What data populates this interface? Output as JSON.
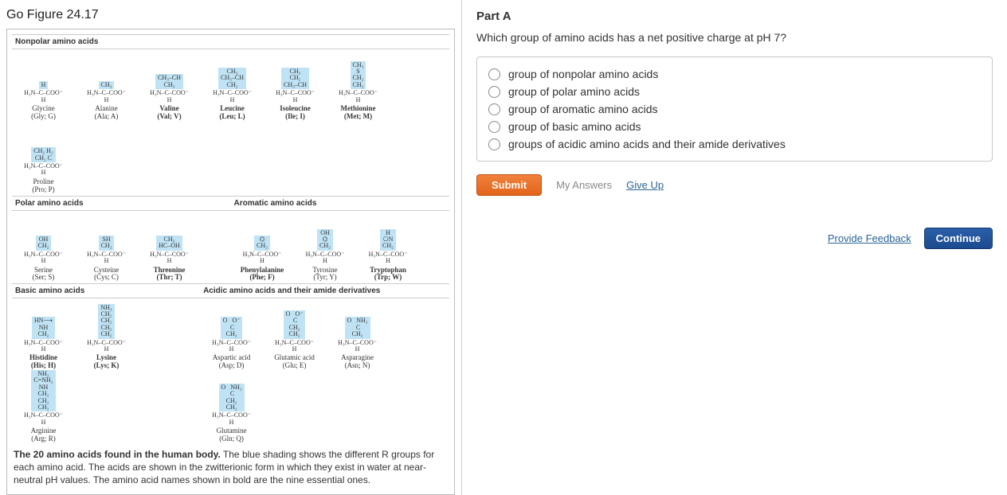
{
  "figure": {
    "title": "Go Figure 24.17",
    "groups": {
      "nonpolar_label": "Nonpolar amino acids",
      "polar_label": "Polar amino acids",
      "aromatic_label": "Aromatic amino acids",
      "basic_label": "Basic amino acids",
      "acidic_label": "Acidic amino acids and their amide derivatives"
    },
    "backbone": "H₃N–C–COO⁻",
    "backbone_sub": "H",
    "aa": {
      "nonpolar": [
        {
          "r": "H",
          "name": "Glycine",
          "abbr": "(Gly; G)",
          "bold": false
        },
        {
          "r": "CH₃",
          "name": "Alanine",
          "abbr": "(Ala; A)",
          "bold": false
        },
        {
          "r": "CH₃–CH\nCH₃",
          "name": "Valine",
          "abbr": "(Val; V)",
          "bold": true
        },
        {
          "r": "CH₃\nCH₃–CH\nCH₂",
          "name": "Leucine",
          "abbr": "(Leu; L)",
          "bold": true
        },
        {
          "r": "CH₃\nCH₂\nCH₃–CH",
          "name": "Isoleucine",
          "abbr": "(Ile; I)",
          "bold": true
        },
        {
          "r": "CH₃\nS\nCH₂\nCH₂",
          "name": "Methionine",
          "abbr": "(Met; M)",
          "bold": true
        },
        {
          "r": "CH₂ H₂\nCH₂ C",
          "name": "Proline",
          "abbr": "(Pro; P)",
          "bold": false
        }
      ],
      "polar": [
        {
          "r": "OH\nCH₂",
          "name": "Serine",
          "abbr": "(Ser; S)",
          "bold": false
        },
        {
          "r": "SH\nCH₂",
          "name": "Cysteine",
          "abbr": "(Cys; C)",
          "bold": false
        },
        {
          "r": "CH₃\nHC–OH",
          "name": "Threonine",
          "abbr": "(Thr; T)",
          "bold": true
        }
      ],
      "aromatic": [
        {
          "r": "⌬\nCH₂",
          "name": "Phenylalanine",
          "abbr": "(Phe; F)",
          "bold": true
        },
        {
          "r": "OH\n⌬\nCH₂",
          "name": "Tyrosine",
          "abbr": "(Tyr; Y)",
          "bold": false
        },
        {
          "r": "H\n⎔N\nCH₂",
          "name": "Tryptophan",
          "abbr": "(Trp; W)",
          "bold": true
        }
      ],
      "basic": [
        {
          "r": "HN⟶\nNH\nCH₂",
          "name": "Histidine",
          "abbr": "(His; H)",
          "bold": true
        },
        {
          "r": "NH₃\nCH₂\nCH₂\nCH₂\nCH₂",
          "name": "Lysine",
          "abbr": "(Lys; K)",
          "bold": true
        },
        {
          "r": "NH₂\nC=NH₂\nNH\nCH₂\nCH₂\nCH₂",
          "name": "Arginine",
          "abbr": "(Arg; R)",
          "bold": false
        }
      ],
      "acidic": [
        {
          "r": "O   O⁻\n C\nCH₂",
          "name": "Aspartic acid",
          "abbr": "(Asp; D)",
          "bold": false
        },
        {
          "r": "O   O⁻\n C\nCH₂\nCH₂",
          "name": "Glutamic acid",
          "abbr": "(Glu; E)",
          "bold": false
        },
        {
          "r": "O   NH₂\n C\nCH₂",
          "name": "Asparagine",
          "abbr": "(Asn; N)",
          "bold": false
        },
        {
          "r": "O   NH₂\n C\nCH₂\nCH₂",
          "name": "Glutamine",
          "abbr": "(Gln; Q)",
          "bold": false
        }
      ]
    },
    "caption_bold": "The 20 amino acids found in the human body.",
    "caption_rest": " The blue shading shows the different R groups for each amino acid. The acids are shown in the zwitterionic form in which they exist in water at near-neutral pH values. The amino acid names shown in bold are the nine essential ones."
  },
  "question": {
    "part": "Part A",
    "text": "Which group of amino acids has a net positive charge at pH 7?",
    "options": [
      "group of nonpolar amino acids",
      "group of polar amino acids",
      "group of aromatic amino acids",
      "group of basic amino acids",
      "groups of acidic amino acids and their amide derivatives"
    ],
    "submit": "Submit",
    "my_answers": "My Answers",
    "give_up": "Give Up",
    "provide_feedback": "Provide Feedback",
    "continue": "Continue"
  },
  "colors": {
    "r_highlight": "#bfe3f4",
    "submit": "#e96b26",
    "continue": "#1b4a8f",
    "link": "#2a6496"
  }
}
